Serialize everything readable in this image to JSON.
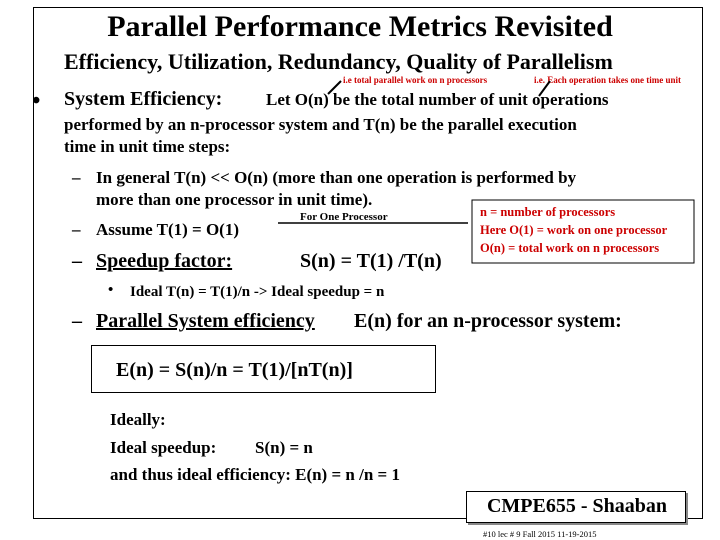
{
  "slide": {
    "title": "Parallel Performance Metrics Revisited",
    "subtitle": "Efficiency, Utilization, Redundancy, Quality of Parallelism",
    "annot_parallel_work": "i.e total parallel work on n processors",
    "annot_unit_time": "i.e. Each operation takes one time unit",
    "bullet_symbol": "•",
    "sys_eff_label": "System Efficiency:",
    "sys_eff_rest": "Let O(n) be the total number of unit operations",
    "line2": "performed by an n-processor system and T(n) be the parallel execution",
    "line3": "time in unit time steps:",
    "dash": "–",
    "general_1": "In general T(n) << O(n) (more than one operation is performed by",
    "general_2": "more than one processor in unit time).",
    "for_one_processor": "For One Processor",
    "assume": "Assume T(1) = O(1)",
    "legend": {
      "line1": "n = number of processors",
      "line2": "Here O(1) = work on one processor",
      "line3": "O(n) = total work on n processors"
    },
    "speedup_label": "Speedup factor:",
    "speedup_formula": "S(n) = T(1) /T(n)",
    "ideal_bullet": "•",
    "ideal_speedup_line": "Ideal T(n) = T(1)/n -> Ideal speedup = n",
    "eff_label": "Parallel System efficiency",
    "eff_rest": "E(n) for an n-processor system:",
    "eff_formula": "E(n) = S(n)/n = T(1)/[nT(n)]",
    "ideally": "Ideally:",
    "ideal_speedup_label": "Ideal speedup:",
    "ideal_speedup_value": "S(n) = n",
    "ideal_efficiency": "and thus ideal efficiency: E(n) = n /n = 1",
    "footer_label": "CMPE655 - Shaaban",
    "footnote": "#10 lec # 9 Fall 2015 11-19-2015"
  },
  "colors": {
    "annotation": "#cc0000",
    "text": "#000000"
  }
}
